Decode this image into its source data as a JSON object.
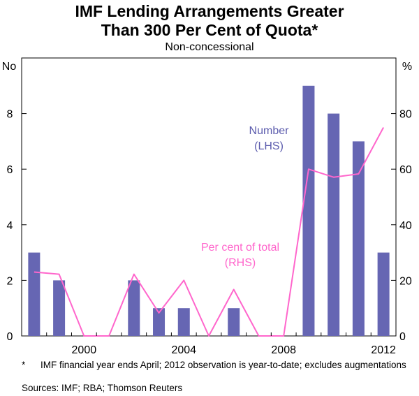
{
  "title_line1": "IMF Lending Arrangements Greater",
  "title_line2": "Than 300 Per Cent of Quota*",
  "subtitle": "Non-concessional",
  "footnote_marker": "*",
  "footnote_text": "IMF financial year ends April; 2012 observation is year-to-date; excludes augmentations",
  "sources": "Sources: IMF; RBA; Thomson Reuters",
  "colors": {
    "bar": "#6666b3",
    "line": "#ff66cc",
    "number_label": "#5c5cad",
    "pct_label": "#ff66cc"
  },
  "chart_data": {
    "type": "bar",
    "categories": [
      "1998",
      "1999",
      "2000",
      "2001",
      "2002",
      "2003",
      "2004",
      "2005",
      "2006",
      "2007",
      "2008",
      "2009",
      "2010",
      "2011",
      "2012"
    ],
    "series": [
      {
        "name": "Number (LHS)",
        "type": "bar",
        "axis": "left",
        "values": [
          3,
          2,
          0,
          0,
          2,
          1,
          1,
          0,
          1,
          0,
          0,
          9,
          8,
          7,
          3
        ]
      },
      {
        "name": "Per cent of total (RHS)",
        "type": "line",
        "axis": "right",
        "values": [
          23,
          22.2,
          0,
          0,
          22.2,
          8.3,
          20,
          0,
          16.7,
          0,
          0,
          60,
          57.1,
          58.3,
          75
        ]
      }
    ],
    "left_axis": {
      "unit": "No",
      "ylim": [
        0,
        10
      ],
      "ticks": [
        0,
        2,
        4,
        6,
        8
      ]
    },
    "right_axis": {
      "unit": "%",
      "ylim": [
        0,
        100
      ],
      "ticks": [
        0,
        20,
        40,
        60,
        80
      ]
    },
    "x_tick_labels": [
      "2000",
      "2004",
      "2008",
      "2012"
    ],
    "annotations": [
      {
        "lines": [
          "Number",
          "(LHS)"
        ],
        "series": "Number (LHS)"
      },
      {
        "lines": [
          "Per cent of total",
          "(RHS)"
        ],
        "series": "Per cent of total (RHS)"
      }
    ],
    "grid": false
  }
}
